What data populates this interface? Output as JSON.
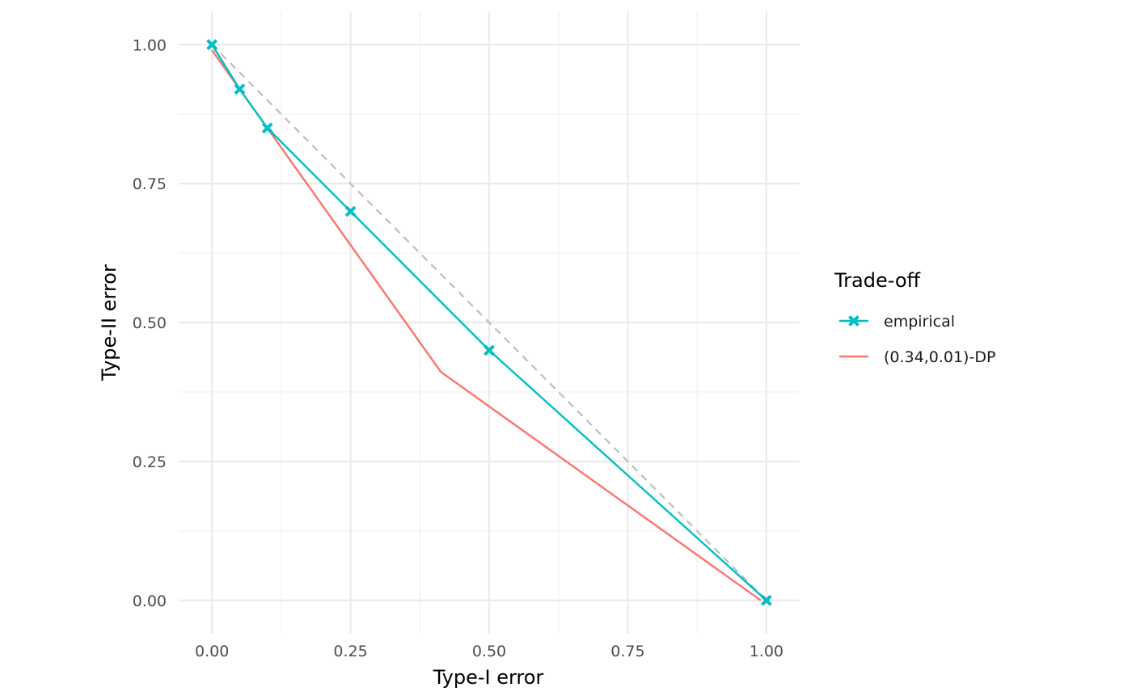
{
  "chart_data": {
    "type": "line",
    "title": "",
    "xlabel": "Type-I error",
    "ylabel": "Type-II error",
    "xlim": [
      -0.06,
      1.06
    ],
    "ylim": [
      -0.06,
      1.06
    ],
    "x_ticks": [
      "0.00",
      "0.25",
      "0.50",
      "0.75",
      "1.00"
    ],
    "y_ticks": [
      "0.00",
      "0.25",
      "0.50",
      "0.75",
      "1.00"
    ],
    "grid": true,
    "legend": {
      "title": "Trade-off",
      "position": "right"
    },
    "series": [
      {
        "name": "empirical",
        "color": "#00BFC4",
        "marker": "x",
        "points": [
          {
            "x": 0.0,
            "y": 1.0
          },
          {
            "x": 0.05,
            "y": 0.92
          },
          {
            "x": 0.1,
            "y": 0.85
          },
          {
            "x": 0.25,
            "y": 0.7
          },
          {
            "x": 0.5,
            "y": 0.45
          },
          {
            "x": 1.0,
            "y": 0.0
          }
        ]
      },
      {
        "name": "(0.34,0.01)-DP",
        "color": "#F8766D",
        "marker": "none",
        "points": [
          {
            "x": 0.0,
            "y": 0.99
          },
          {
            "x": 0.413,
            "y": 0.411
          },
          {
            "x": 0.99,
            "y": 0.0
          }
        ]
      }
    ],
    "reference_line": {
      "color": "#BEBEBE",
      "dashed": true,
      "points": [
        {
          "x": 0.0,
          "y": 1.0
        },
        {
          "x": 1.0,
          "y": 0.0
        }
      ]
    }
  }
}
